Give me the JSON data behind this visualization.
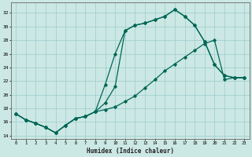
{
  "xlabel": "Humidex (Indice chaleur)",
  "background_color": "#cce8e4",
  "grid_color": "#99cccc",
  "line_color": "#006655",
  "xlim": [
    -0.5,
    23.5
  ],
  "ylim": [
    13.5,
    33.5
  ],
  "xticks": [
    0,
    1,
    2,
    3,
    4,
    5,
    6,
    7,
    8,
    9,
    10,
    11,
    12,
    13,
    14,
    15,
    16,
    17,
    18,
    19,
    20,
    21,
    22,
    23
  ],
  "yticks": [
    14,
    16,
    18,
    20,
    22,
    24,
    26,
    28,
    30,
    32
  ],
  "series1_x": [
    0,
    1,
    2,
    3,
    4,
    5,
    6,
    7,
    8,
    9,
    10,
    11,
    12,
    13,
    14,
    15,
    16,
    17,
    18,
    19,
    20,
    21,
    22,
    23
  ],
  "series1_y": [
    17.2,
    16.3,
    15.8,
    15.2,
    14.4,
    15.5,
    16.5,
    16.8,
    17.5,
    18.8,
    21.2,
    29.4,
    30.2,
    30.5,
    31.0,
    31.5,
    32.5,
    31.5,
    30.2,
    27.8,
    24.4,
    22.8,
    22.5,
    22.5
  ],
  "series2_x": [
    0,
    1,
    2,
    3,
    4,
    5,
    6,
    7,
    8,
    9,
    10,
    11,
    12,
    13,
    14,
    15,
    16,
    17,
    18,
    19,
    20,
    21,
    22,
    23
  ],
  "series2_y": [
    17.2,
    16.3,
    15.8,
    15.2,
    14.4,
    15.5,
    16.5,
    16.8,
    17.5,
    21.5,
    26.0,
    29.4,
    30.2,
    30.5,
    31.0,
    31.5,
    32.5,
    31.5,
    30.2,
    27.8,
    24.4,
    22.8,
    22.5,
    22.5
  ],
  "series3_x": [
    0,
    1,
    2,
    3,
    4,
    5,
    6,
    7,
    8,
    9,
    10,
    11,
    12,
    13,
    14,
    15,
    16,
    17,
    18,
    19,
    20,
    21,
    22,
    23
  ],
  "series3_y": [
    17.2,
    16.3,
    15.8,
    15.2,
    14.4,
    15.5,
    16.5,
    16.8,
    17.5,
    17.8,
    18.2,
    19.0,
    19.8,
    21.0,
    22.2,
    23.5,
    24.5,
    25.5,
    26.5,
    27.5,
    28.0,
    22.2,
    22.5,
    22.5
  ]
}
